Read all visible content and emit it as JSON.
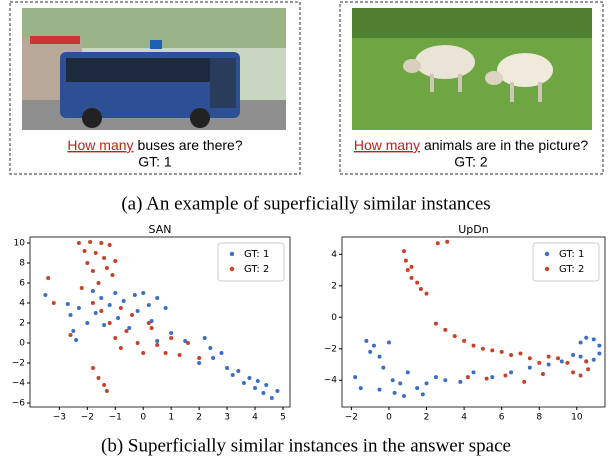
{
  "panel_a": {
    "examples": [
      {
        "highlight": "How many",
        "question": "buses are there?",
        "answer": "GT: 1"
      },
      {
        "highlight": "How many",
        "question": "animals are in the picture?",
        "answer": "GT: 2"
      }
    ],
    "caption": "(a) An example of superficially similar instances"
  },
  "chart_data": [
    {
      "type": "scatter",
      "title": "SAN",
      "legend": "upper right",
      "xlim": [
        -4.05,
        5.25
      ],
      "ylim": [
        -6.4,
        10.6
      ],
      "xticks": [
        {
          "value": -3,
          "label": "−3"
        },
        {
          "value": -2,
          "label": "−2"
        },
        {
          "value": -1,
          "label": "−1"
        },
        0,
        1,
        2,
        3,
        4,
        5
      ],
      "yticks": [
        {
          "value": -6,
          "label": "−6"
        },
        {
          "value": -4,
          "label": "−4"
        },
        {
          "value": -2,
          "label": "−2"
        },
        0,
        2,
        4,
        6,
        8,
        10
      ],
      "series": [
        {
          "name": "GT: 1",
          "color": "#3a6fc4",
          "x": [
            -3.5,
            -2.7,
            -2.6,
            -2.5,
            -2.4,
            -2.3,
            -2.0,
            -1.8,
            -1.7,
            -1.5,
            -1.4,
            -1.2,
            -1.0,
            -0.9,
            -0.7,
            -0.5,
            -0.3,
            -0.2,
            0,
            0.2,
            0.3,
            0.5,
            0.8,
            1.0,
            1.5,
            2.2,
            2.4,
            2.5,
            2.8,
            3.0,
            3.2,
            3.4,
            3.6,
            3.8,
            4.0,
            4.1,
            4.3,
            4.4,
            4.6,
            4.8,
            2.0,
            0.5
          ],
          "values": [
            4.8,
            3.9,
            2.8,
            1.2,
            0.3,
            3.5,
            2.0,
            5.2,
            3.0,
            4.5,
            1.8,
            3.8,
            5.0,
            2.5,
            4.2,
            1.5,
            4.8,
            3.2,
            5.0,
            3.8,
            2.2,
            4.5,
            3.5,
            1.0,
            0.2,
            0.5,
            -0.5,
            -1.5,
            -1.0,
            -2.5,
            -3.2,
            -2.8,
            -4.0,
            -3.5,
            -4.5,
            -3.8,
            -5.0,
            -4.2,
            -5.5,
            -4.8,
            -2.0,
            0.2
          ]
        },
        {
          "name": "GT: 2",
          "color": "#c8412a",
          "x": [
            -3.4,
            -2.3,
            -2.1,
            -2.0,
            -1.9,
            -1.8,
            -1.7,
            -1.6,
            -1.5,
            -1.4,
            -1.3,
            -1.2,
            -1.1,
            -1.0,
            -2.2,
            -1.8,
            -1.5,
            -1.2,
            -1.0,
            -0.8,
            -0.6,
            -0.4,
            -0.2,
            0,
            0.3,
            0.5,
            0.8,
            1.0,
            1.3,
            1.6,
            2.0,
            -1.6,
            -1.4,
            -1.3,
            -1.8,
            -2.6,
            -3.2,
            -0.8,
            0.2
          ],
          "values": [
            6.5,
            10.0,
            9.2,
            8.0,
            10.1,
            7.2,
            9.0,
            6.0,
            10.0,
            8.5,
            7.5,
            9.8,
            6.8,
            8.2,
            5.5,
            4.0,
            3.2,
            2.0,
            0.5,
            -0.5,
            1.2,
            2.8,
            0.0,
            -1.0,
            1.5,
            -0.2,
            -1.0,
            0.5,
            -1.2,
            0.0,
            -1.5,
            -3.5,
            -4.2,
            -4.8,
            -2.5,
            0.8,
            4.0,
            3.5,
            2.0
          ]
        }
      ]
    },
    {
      "type": "scatter",
      "title": "UpDn",
      "legend": "upper right",
      "xlim": [
        -2.5,
        11.5
      ],
      "ylim": [
        -5.7,
        5.1
      ],
      "xticks": [
        {
          "value": -2,
          "label": "−2"
        },
        0,
        2,
        4,
        6,
        8,
        10
      ],
      "yticks": [
        {
          "value": -4,
          "label": "−4"
        },
        {
          "value": -2,
          "label": "−2"
        },
        0,
        2,
        4
      ],
      "series": [
        {
          "name": "GT: 1",
          "color": "#3a6fc4",
          "x": [
            -1.8,
            -1.5,
            -1.2,
            -1.0,
            -0.8,
            -0.5,
            -0.3,
            0,
            0.2,
            0.3,
            0.6,
            1.0,
            1.5,
            2.0,
            2.5,
            3.0,
            3.8,
            4.5,
            5.5,
            6.5,
            7.5,
            8.5,
            9.2,
            9.8,
            10.2,
            10.5,
            10.9,
            11.2,
            11.2,
            10.9,
            10.5,
            10.2,
            0.8,
            1.8,
            -0.5
          ],
          "values": [
            -3.8,
            -4.5,
            -1.5,
            -2.2,
            -1.8,
            -2.5,
            -3.2,
            -1.6,
            -4.0,
            -4.8,
            -4.2,
            -3.5,
            -4.5,
            -4.2,
            -3.8,
            -4.0,
            -4.1,
            -3.5,
            -3.8,
            -3.5,
            -3.2,
            -3.0,
            -2.8,
            -2.4,
            -1.6,
            -1.3,
            -1.4,
            -1.8,
            -2.3,
            -2.7,
            -2.8,
            -2.5,
            -5.0,
            -4.9,
            -4.6
          ]
        },
        {
          "name": "GT: 2",
          "color": "#c8412a",
          "x": [
            0.8,
            0.9,
            1.0,
            1.2,
            1.5,
            1.7,
            2.0,
            2.6,
            3.1,
            1.2,
            2.5,
            3.0,
            3.5,
            4.0,
            4.5,
            5.0,
            5.5,
            6.0,
            6.5,
            7.0,
            7.5,
            8.0,
            8.5,
            9.0,
            9.5,
            9.8,
            10.2,
            10.6,
            10.5,
            6.2,
            7.2,
            8.2,
            5.2,
            4.2
          ],
          "values": [
            4.2,
            3.6,
            3.0,
            2.5,
            2.2,
            1.8,
            1.5,
            4.7,
            4.8,
            3.2,
            -0.4,
            -0.8,
            -1.2,
            -1.5,
            -1.8,
            -2.0,
            -2.1,
            -2.2,
            -2.4,
            -2.3,
            -2.6,
            -2.9,
            -2.5,
            -2.6,
            -2.9,
            -3.5,
            -3.7,
            -3.3,
            -2.8,
            -3.7,
            -4.1,
            -3.6,
            -3.9,
            -3.8
          ]
        }
      ]
    }
  ],
  "caption_b": "(b) Superficially similar instances in the answer space"
}
